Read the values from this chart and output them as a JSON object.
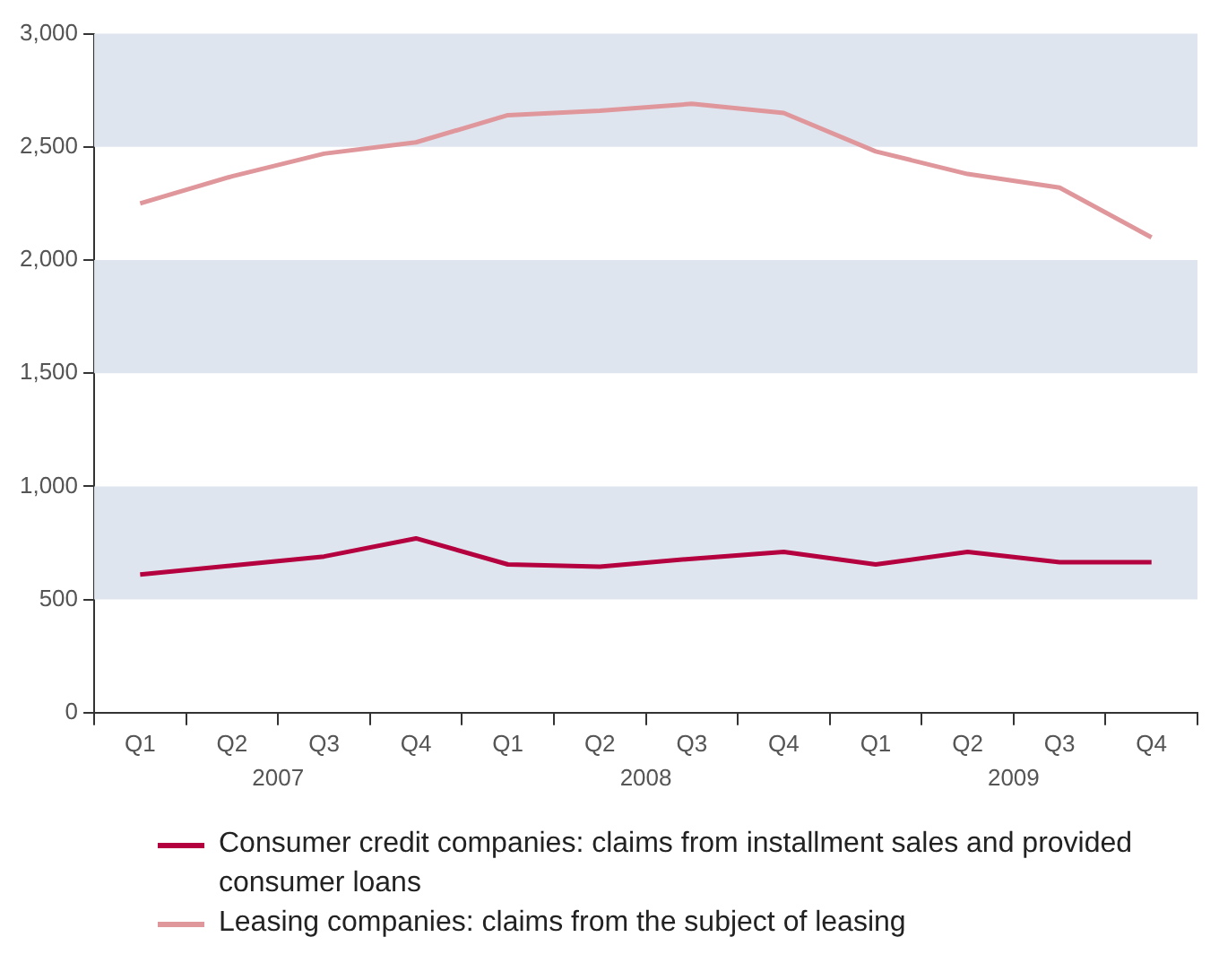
{
  "chart_data": {
    "type": "line",
    "categories": [
      "Q1",
      "Q2",
      "Q3",
      "Q4",
      "Q1",
      "Q2",
      "Q3",
      "Q4",
      "Q1",
      "Q2",
      "Q3",
      "Q4"
    ],
    "series": [
      {
        "name": "Consumer credit companies: claims from installment sales and provided consumer loans",
        "color": "#b5003f",
        "values": [
          610,
          650,
          690,
          770,
          655,
          645,
          680,
          710,
          655,
          710,
          665,
          665
        ]
      },
      {
        "name": "Leasing companies: claims from the subject of leasing",
        "color": "#e0979c",
        "values": [
          2250,
          2370,
          2470,
          2520,
          2640,
          2660,
          2690,
          2650,
          2480,
          2380,
          2320,
          2100
        ]
      }
    ],
    "ylim": [
      0,
      3000
    ],
    "yticks": [
      {
        "value": 0,
        "label": "0"
      },
      {
        "value": 500,
        "label": "500"
      },
      {
        "value": 1000,
        "label": "1,000"
      },
      {
        "value": 1500,
        "label": "1,500"
      },
      {
        "value": 2000,
        "label": "2,000"
      },
      {
        "value": 2500,
        "label": "2,500"
      },
      {
        "value": 3000,
        "label": "3,000"
      }
    ],
    "bands": [
      {
        "axis": "y",
        "from": 500,
        "to": 1000,
        "color": "#dfe5ef"
      },
      {
        "axis": "y",
        "from": 1500,
        "to": 2000,
        "color": "#dfe5ef"
      },
      {
        "axis": "y",
        "from": 2500,
        "to": 3000,
        "color": "#dfe5ef"
      }
    ],
    "annotations": [
      "2007",
      "2008",
      "2009"
    ],
    "grid": false,
    "legend": "bottom",
    "marker": "none",
    "line_style": "solid"
  }
}
